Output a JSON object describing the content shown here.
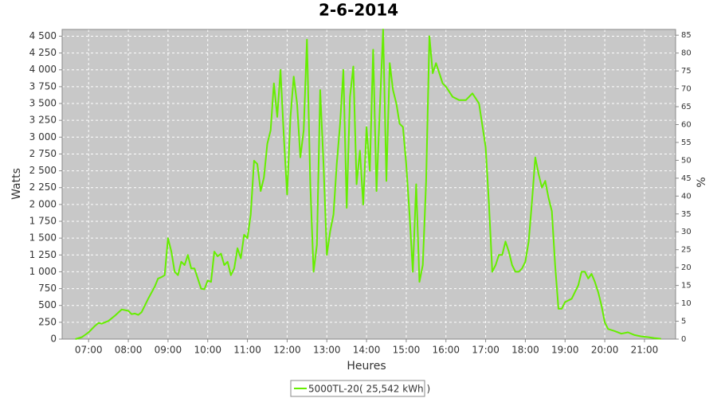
{
  "chart_data": {
    "type": "line",
    "title": "2-6-2014",
    "x_label": "Heures",
    "y_label": "Watts",
    "y2_label": "%",
    "xlim": [
      "06:20",
      "21:47"
    ],
    "xticks": [
      "07:00",
      "08:00",
      "09:00",
      "10:00",
      "11:00",
      "12:00",
      "13:00",
      "14:00",
      "15:00",
      "16:00",
      "17:00",
      "18:00",
      "19:00",
      "20:00",
      "21:00"
    ],
    "ylim": [
      0,
      4600
    ],
    "yticks": [
      0,
      250,
      500,
      750,
      {
        "value": 1000,
        "label": "1 000"
      },
      {
        "value": 1250,
        "label": "1 250"
      },
      {
        "value": 1500,
        "label": "1 500"
      },
      {
        "value": 1750,
        "label": "1 750"
      },
      {
        "value": 2000,
        "label": "2 000"
      },
      {
        "value": 2250,
        "label": "2 250"
      },
      {
        "value": 2500,
        "label": "2 500"
      },
      {
        "value": 2750,
        "label": "2 750"
      },
      {
        "value": 3000,
        "label": "3 000"
      },
      {
        "value": 3250,
        "label": "3 250"
      },
      {
        "value": 3500,
        "label": "3 500"
      },
      {
        "value": 3750,
        "label": "3 750"
      },
      {
        "value": 4000,
        "label": "4 000"
      },
      {
        "value": 4250,
        "label": "4 250"
      },
      {
        "value": 4500,
        "label": "4 500"
      }
    ],
    "y2lim": [
      0,
      86.6
    ],
    "y2ticks": [
      0,
      5,
      10,
      15,
      20,
      25,
      30,
      35,
      40,
      45,
      50,
      55,
      60,
      65,
      70,
      75,
      80,
      85
    ],
    "grid": true,
    "background": "#c8c8c8",
    "x": [
      "06:40",
      "06:50",
      "07:00",
      "07:10",
      "07:15",
      "07:20",
      "07:30",
      "07:40",
      "07:50",
      "08:00",
      "08:05",
      "08:10",
      "08:15",
      "08:20",
      "08:30",
      "08:40",
      "08:45",
      "08:50",
      "08:55",
      "09:00",
      "09:05",
      "09:10",
      "09:15",
      "09:20",
      "09:25",
      "09:30",
      "09:35",
      "09:40",
      "09:45",
      "09:50",
      "09:55",
      "10:00",
      "10:05",
      "10:10",
      "10:15",
      "10:20",
      "10:25",
      "10:30",
      "10:35",
      "10:40",
      "10:45",
      "10:50",
      "10:55",
      "11:00",
      "11:05",
      "11:10",
      "11:15",
      "11:20",
      "11:25",
      "11:30",
      "11:35",
      "11:40",
      "11:45",
      "11:50",
      "11:55",
      "12:00",
      "12:05",
      "12:10",
      "12:15",
      "12:20",
      "12:25",
      "12:30",
      "12:35",
      "12:40",
      "12:45",
      "12:50",
      "12:55",
      "13:00",
      "13:05",
      "13:10",
      "13:15",
      "13:20",
      "13:25",
      "13:30",
      "13:35",
      "13:40",
      "13:45",
      "13:50",
      "13:55",
      "14:00",
      "14:05",
      "14:10",
      "14:15",
      "14:20",
      "14:25",
      "14:30",
      "14:35",
      "14:40",
      "14:45",
      "14:50",
      "14:55",
      "15:00",
      "15:05",
      "15:10",
      "15:15",
      "15:20",
      "15:25",
      "15:30",
      "15:35",
      "15:40",
      "15:45",
      "15:50",
      "15:55",
      "16:00",
      "16:10",
      "16:20",
      "16:30",
      "16:40",
      "16:50",
      "17:00",
      "17:05",
      "17:10",
      "17:15",
      "17:20",
      "17:25",
      "17:30",
      "17:35",
      "17:40",
      "17:45",
      "17:50",
      "17:55",
      "18:00",
      "18:05",
      "18:10",
      "18:15",
      "18:20",
      "18:25",
      "18:30",
      "18:35",
      "18:40",
      "18:45",
      "18:50",
      "18:55",
      "19:00",
      "19:10",
      "19:20",
      "19:25",
      "19:30",
      "19:35",
      "19:40",
      "19:45",
      "19:50",
      "19:55",
      "20:00",
      "20:05",
      "20:15",
      "20:25",
      "20:35",
      "20:45",
      "20:55",
      "21:05",
      "21:15",
      "21:25"
    ],
    "series": [
      {
        "name": "5000TL-20( 25,542 kWh )",
        "color": "#66ee00",
        "values": [
          0,
          30,
          100,
          200,
          240,
          230,
          270,
          350,
          440,
          420,
          370,
          380,
          360,
          400,
          600,
          780,
          900,
          920,
          950,
          1500,
          1300,
          1000,
          950,
          1150,
          1100,
          1250,
          1050,
          1050,
          900,
          750,
          740,
          870,
          850,
          1300,
          1230,
          1270,
          1100,
          1150,
          950,
          1050,
          1350,
          1200,
          1550,
          1500,
          1850,
          2650,
          2600,
          2200,
          2400,
          2900,
          3100,
          3800,
          3300,
          4000,
          3000,
          2150,
          3300,
          3900,
          3500,
          2700,
          3100,
          4450,
          2300,
          1000,
          1400,
          3700,
          2600,
          1250,
          1600,
          1850,
          2600,
          3200,
          4000,
          1950,
          3600,
          4050,
          2300,
          2800,
          2000,
          3150,
          2500,
          4300,
          2200,
          3400,
          4600,
          2350,
          4100,
          3700,
          3500,
          3200,
          3150,
          2600,
          1850,
          1000,
          2300,
          850,
          1100,
          2350,
          4500,
          3950,
          4100,
          3950,
          3800,
          3750,
          3600,
          3550,
          3550,
          3650,
          3500,
          2850,
          2000,
          1000,
          1100,
          1250,
          1250,
          1450,
          1300,
          1100,
          1000,
          1000,
          1050,
          1150,
          1450,
          2050,
          2700,
          2450,
          2250,
          2350,
          2100,
          1900,
          1100,
          450,
          450,
          550,
          600,
          800,
          1000,
          1000,
          900,
          970,
          850,
          700,
          500,
          250,
          150,
          120,
          80,
          100,
          60,
          40,
          30,
          15,
          5
        ]
      }
    ]
  }
}
